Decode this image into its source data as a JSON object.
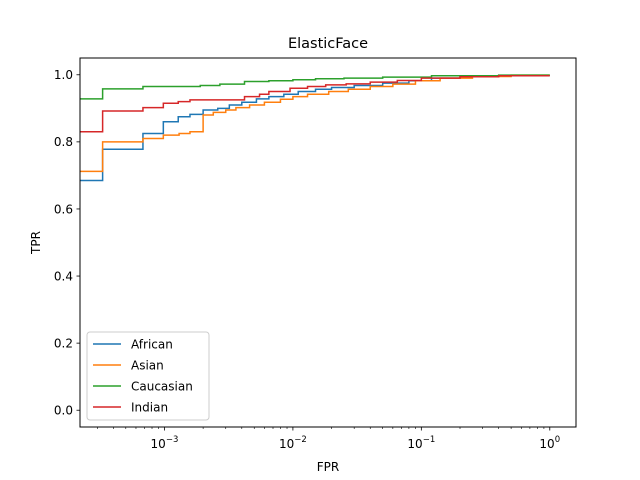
{
  "chart_data": {
    "type": "line",
    "title": "ElasticFace",
    "xlabel": "FPR",
    "ylabel": "TPR",
    "xscale": "log",
    "xlim": [
      0.00022,
      1.6
    ],
    "ylim": [
      -0.05,
      1.05
    ],
    "x_ticks": [
      {
        "value": 0.001,
        "base": "10",
        "exp": "−3"
      },
      {
        "value": 0.01,
        "base": "10",
        "exp": "−2"
      },
      {
        "value": 0.1,
        "base": "10",
        "exp": "−1"
      },
      {
        "value": 1,
        "base": "10",
        "exp": "0"
      }
    ],
    "y_ticks": [
      "0.0",
      "0.2",
      "0.4",
      "0.6",
      "0.8",
      "1.0"
    ],
    "grid": false,
    "legend_position": "lower-left",
    "series": [
      {
        "name": "African",
        "color": "#1f77b4",
        "points": [
          [
            0.0002,
            0.685
          ],
          [
            0.00033,
            0.685
          ],
          [
            0.00033,
            0.778
          ],
          [
            0.00068,
            0.778
          ],
          [
            0.00068,
            0.825
          ],
          [
            0.00098,
            0.825
          ],
          [
            0.00098,
            0.86
          ],
          [
            0.00128,
            0.86
          ],
          [
            0.00128,
            0.875
          ],
          [
            0.00158,
            0.875
          ],
          [
            0.00158,
            0.882
          ],
          [
            0.002,
            0.882
          ],
          [
            0.002,
            0.895
          ],
          [
            0.0026,
            0.895
          ],
          [
            0.0026,
            0.9
          ],
          [
            0.0032,
            0.9
          ],
          [
            0.0032,
            0.91
          ],
          [
            0.004,
            0.91
          ],
          [
            0.004,
            0.918
          ],
          [
            0.0052,
            0.918
          ],
          [
            0.0052,
            0.928
          ],
          [
            0.0065,
            0.928
          ],
          [
            0.0065,
            0.935
          ],
          [
            0.0085,
            0.935
          ],
          [
            0.0085,
            0.942
          ],
          [
            0.011,
            0.942
          ],
          [
            0.011,
            0.95
          ],
          [
            0.015,
            0.95
          ],
          [
            0.015,
            0.957
          ],
          [
            0.02,
            0.957
          ],
          [
            0.02,
            0.962
          ],
          [
            0.03,
            0.962
          ],
          [
            0.03,
            0.968
          ],
          [
            0.05,
            0.968
          ],
          [
            0.05,
            0.975
          ],
          [
            0.08,
            0.975
          ],
          [
            0.08,
            0.982
          ],
          [
            0.12,
            0.982
          ],
          [
            0.12,
            0.99
          ],
          [
            0.2,
            0.99
          ],
          [
            0.2,
            0.995
          ],
          [
            0.4,
            0.995
          ],
          [
            0.4,
            0.998
          ],
          [
            1.0,
            0.998
          ]
        ]
      },
      {
        "name": "Asian",
        "color": "#ff7f0e",
        "points": [
          [
            0.0002,
            0.712
          ],
          [
            0.00033,
            0.712
          ],
          [
            0.00033,
            0.8
          ],
          [
            0.00068,
            0.8
          ],
          [
            0.00068,
            0.81
          ],
          [
            0.00098,
            0.81
          ],
          [
            0.00098,
            0.82
          ],
          [
            0.0013,
            0.82
          ],
          [
            0.0013,
            0.825
          ],
          [
            0.00158,
            0.825
          ],
          [
            0.00158,
            0.83
          ],
          [
            0.002,
            0.83
          ],
          [
            0.002,
            0.88
          ],
          [
            0.0024,
            0.88
          ],
          [
            0.0024,
            0.888
          ],
          [
            0.003,
            0.888
          ],
          [
            0.003,
            0.895
          ],
          [
            0.0036,
            0.895
          ],
          [
            0.0036,
            0.902
          ],
          [
            0.0046,
            0.902
          ],
          [
            0.0046,
            0.91
          ],
          [
            0.006,
            0.91
          ],
          [
            0.006,
            0.918
          ],
          [
            0.008,
            0.918
          ],
          [
            0.008,
            0.927
          ],
          [
            0.01,
            0.927
          ],
          [
            0.01,
            0.935
          ],
          [
            0.013,
            0.935
          ],
          [
            0.013,
            0.942
          ],
          [
            0.019,
            0.942
          ],
          [
            0.019,
            0.95
          ],
          [
            0.027,
            0.95
          ],
          [
            0.027,
            0.957
          ],
          [
            0.04,
            0.957
          ],
          [
            0.04,
            0.965
          ],
          [
            0.06,
            0.965
          ],
          [
            0.06,
            0.972
          ],
          [
            0.09,
            0.972
          ],
          [
            0.09,
            0.982
          ],
          [
            0.14,
            0.982
          ],
          [
            0.14,
            0.99
          ],
          [
            0.25,
            0.99
          ],
          [
            0.25,
            0.995
          ],
          [
            0.5,
            0.995
          ],
          [
            0.5,
            0.999
          ],
          [
            1.0,
            0.999
          ]
        ]
      },
      {
        "name": "Caucasian",
        "color": "#2ca02c",
        "points": [
          [
            0.0002,
            0.928
          ],
          [
            0.00033,
            0.928
          ],
          [
            0.00033,
            0.958
          ],
          [
            0.00068,
            0.958
          ],
          [
            0.00068,
            0.965
          ],
          [
            0.0019,
            0.965
          ],
          [
            0.0019,
            0.968
          ],
          [
            0.0027,
            0.968
          ],
          [
            0.0027,
            0.972
          ],
          [
            0.0042,
            0.972
          ],
          [
            0.0042,
            0.98
          ],
          [
            0.0065,
            0.98
          ],
          [
            0.0065,
            0.982
          ],
          [
            0.01,
            0.982
          ],
          [
            0.01,
            0.985
          ],
          [
            0.015,
            0.985
          ],
          [
            0.015,
            0.988
          ],
          [
            0.025,
            0.988
          ],
          [
            0.025,
            0.99
          ],
          [
            0.05,
            0.99
          ],
          [
            0.05,
            0.993
          ],
          [
            0.12,
            0.993
          ],
          [
            0.12,
            0.997
          ],
          [
            0.4,
            0.997
          ],
          [
            0.4,
            0.999
          ],
          [
            1.0,
            0.999
          ]
        ]
      },
      {
        "name": "Indian",
        "color": "#d62728",
        "points": [
          [
            0.0002,
            0.83
          ],
          [
            0.00033,
            0.83
          ],
          [
            0.00033,
            0.892
          ],
          [
            0.00068,
            0.892
          ],
          [
            0.00068,
            0.902
          ],
          [
            0.00098,
            0.902
          ],
          [
            0.00098,
            0.915
          ],
          [
            0.00128,
            0.915
          ],
          [
            0.00128,
            0.92
          ],
          [
            0.00158,
            0.92
          ],
          [
            0.00158,
            0.925
          ],
          [
            0.0042,
            0.925
          ],
          [
            0.0042,
            0.935
          ],
          [
            0.0055,
            0.935
          ],
          [
            0.0055,
            0.942
          ],
          [
            0.0065,
            0.942
          ],
          [
            0.0065,
            0.95
          ],
          [
            0.0095,
            0.95
          ],
          [
            0.0095,
            0.96
          ],
          [
            0.013,
            0.96
          ],
          [
            0.013,
            0.965
          ],
          [
            0.018,
            0.965
          ],
          [
            0.018,
            0.97
          ],
          [
            0.026,
            0.97
          ],
          [
            0.026,
            0.973
          ],
          [
            0.04,
            0.973
          ],
          [
            0.04,
            0.978
          ],
          [
            0.065,
            0.978
          ],
          [
            0.065,
            0.983
          ],
          [
            0.1,
            0.983
          ],
          [
            0.1,
            0.99
          ],
          [
            0.2,
            0.99
          ],
          [
            0.2,
            0.994
          ],
          [
            0.4,
            0.994
          ],
          [
            0.4,
            0.997
          ],
          [
            1.0,
            0.997
          ]
        ]
      }
    ]
  }
}
